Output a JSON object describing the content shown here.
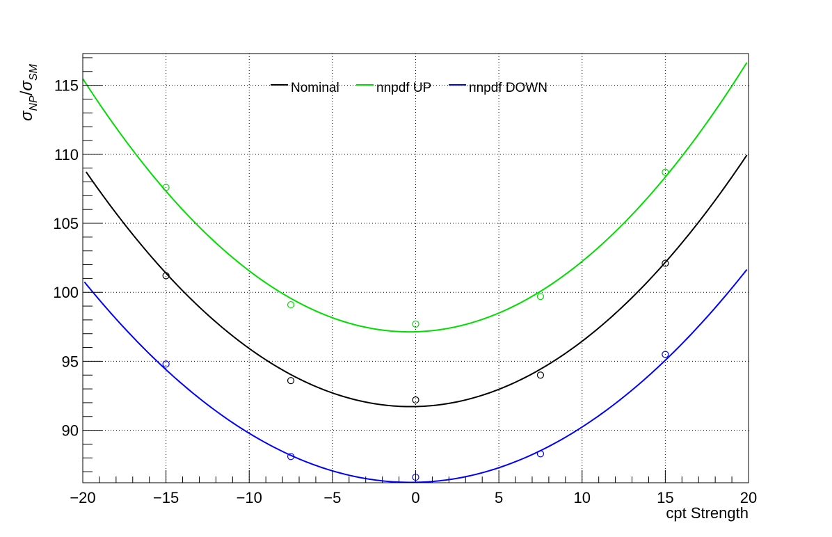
{
  "chart_data": {
    "type": "line",
    "title": "",
    "xlabel": "cpt Strength",
    "ylabel": "σNP/σSM",
    "ylabel_parts": {
      "sym1": "σ",
      "sub1": "NP",
      "slash": "/",
      "sym2": "σ",
      "sub2": "SM"
    },
    "xlim": [
      -20,
      20
    ],
    "ylim": [
      86.2,
      117.3
    ],
    "xticks": [
      -20,
      -15,
      -10,
      -5,
      0,
      5,
      10,
      15,
      20
    ],
    "xtick_labels": [
      "−20",
      "−15",
      "−10",
      "−5",
      "0",
      "5",
      "10",
      "15",
      "20"
    ],
    "yticks": [
      90,
      95,
      100,
      105,
      110,
      115
    ],
    "ytick_labels": [
      "90",
      "95",
      "100",
      "105",
      "110",
      "115"
    ],
    "grid": true,
    "legend_position": "top-center",
    "series": [
      {
        "name": "Nominal",
        "color": "#000000",
        "points": {
          "x": [
            -15,
            -7.5,
            0,
            7.5,
            15
          ],
          "y": [
            101.2,
            93.6,
            92.2,
            94.0,
            102.1
          ]
        },
        "fit": {
          "a": 0.0447,
          "b": 0.0262,
          "c": 91.72,
          "x_range": [
            -19.8,
            19.9
          ]
        }
      },
      {
        "name": "nnpdf UP",
        "color": "#00dd00",
        "points": {
          "x": [
            -15,
            -7.5,
            0,
            7.5,
            15
          ],
          "y": [
            107.6,
            99.1,
            97.7,
            99.7,
            108.7
          ]
        },
        "fit": {
          "a": 0.04755,
          "b": 0.0341,
          "c": 97.14,
          "x_range": [
            -20,
            19.9
          ]
        }
      },
      {
        "name": "nnpdf DOWN",
        "color": "#0000ff",
        "points": {
          "x": [
            -15,
            -7.5,
            0,
            7.5,
            15
          ],
          "y": [
            94.8,
            88.1,
            86.6,
            88.3,
            95.5
          ]
        },
        "fit": {
          "a": 0.0378,
          "b": 0.0227,
          "c": 86.23,
          "x_range": [
            -19.9,
            19.9
          ]
        }
      }
    ]
  }
}
